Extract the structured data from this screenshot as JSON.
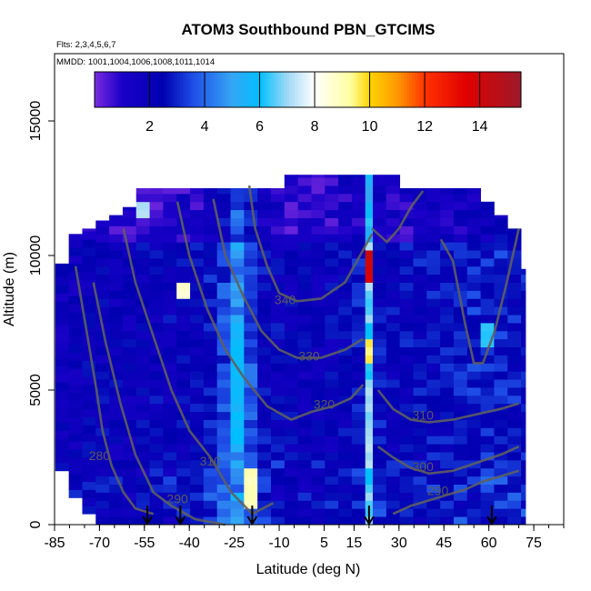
{
  "chart_data": {
    "type": "heatmap",
    "title": "ATOM3 Southbound PBN_GTCIMS",
    "flights_label": "Flts: 2,3,4,5,6,7",
    "dates_label": "MMDD: 1001,1004,1006,1008,1011,1014",
    "xlabel": "Latitude (deg N)",
    "ylabel": "Altitude (m)",
    "xlim": [
      -85,
      85
    ],
    "ylim": [
      0,
      17500
    ],
    "x_ticks": [
      -85,
      -70,
      -55,
      -40,
      -25,
      -10,
      5,
      15,
      30,
      45,
      60,
      75
    ],
    "x_tick_labels": [
      "-85",
      "-70",
      "-55",
      "-40",
      "-25",
      "-10",
      "5",
      "15",
      "30",
      "45",
      "60",
      "75"
    ],
    "y_ticks": [
      0,
      5000,
      10000,
      15000
    ],
    "y_tick_labels": [
      "0",
      "5000",
      "10000",
      "15000"
    ],
    "colorbar": {
      "range": [
        0,
        15.5
      ],
      "ticks": [
        2,
        4,
        6,
        8,
        10,
        12,
        14
      ],
      "tick_labels": [
        "2",
        "4",
        "6",
        "8",
        "10",
        "12",
        "14"
      ],
      "stops": [
        {
          "v": 0.0,
          "c": "#7a2be0"
        },
        {
          "v": 1.0,
          "c": "#1a00c8"
        },
        {
          "v": 2.5,
          "c": "#0000b0"
        },
        {
          "v": 3.6,
          "c": "#1f4fe8"
        },
        {
          "v": 5.0,
          "c": "#35a6f5"
        },
        {
          "v": 6.0,
          "c": "#00bfff"
        },
        {
          "v": 7.0,
          "c": "#9fd8f5"
        },
        {
          "v": 8.0,
          "c": "#ffffff"
        },
        {
          "v": 9.3,
          "c": "#ffffa0"
        },
        {
          "v": 10.0,
          "c": "#ffd400"
        },
        {
          "v": 11.0,
          "c": "#ff9900"
        },
        {
          "v": 12.0,
          "c": "#ff3300"
        },
        {
          "v": 13.5,
          "c": "#e00000"
        },
        {
          "v": 15.5,
          "c": "#9b1a2a"
        }
      ]
    },
    "flight_markers_lat": [
      -54,
      -43,
      -19,
      20,
      61
    ],
    "columns": [
      {
        "lat": -82.5,
        "w": 4.5,
        "bot": 2000,
        "top": 9700,
        "base": 1.8
      },
      {
        "lat": -78.0,
        "w": 4.5,
        "bot": 1000,
        "top": 10800,
        "base": 1.9
      },
      {
        "lat": -73.5,
        "w": 4.5,
        "bot": 400,
        "top": 11000,
        "base": 2.0
      },
      {
        "lat": -69.0,
        "w": 4.5,
        "bot": 0,
        "top": 11300,
        "base": 2.1
      },
      {
        "lat": -64.5,
        "w": 4.5,
        "bot": 0,
        "top": 11500,
        "base": 2.0
      },
      {
        "lat": -60.0,
        "w": 4.5,
        "bot": 0,
        "top": 11800,
        "base": 2.0
      },
      {
        "lat": -55.5,
        "w": 4.5,
        "bot": 0,
        "top": 12500,
        "base": 2.1
      },
      {
        "lat": -51.0,
        "w": 4.5,
        "bot": 0,
        "top": 12500,
        "base": 2.2
      },
      {
        "lat": -46.5,
        "w": 4.5,
        "bot": 0,
        "top": 12500,
        "base": 2.2
      },
      {
        "lat": -42.0,
        "w": 4.5,
        "bot": 0,
        "top": 12500,
        "base": 2.3
      },
      {
        "lat": -37.5,
        "w": 4.5,
        "bot": 0,
        "top": 12500,
        "base": 2.3
      },
      {
        "lat": -33.0,
        "w": 4.5,
        "bot": 0,
        "top": 12500,
        "base": 2.6
      },
      {
        "lat": -28.5,
        "w": 4.5,
        "bot": 0,
        "top": 12500,
        "base": 3.4
      },
      {
        "lat": -24.0,
        "w": 4.5,
        "bot": 0,
        "top": 12500,
        "base": 4.6
      },
      {
        "lat": -19.5,
        "w": 4.5,
        "bot": 0,
        "top": 12500,
        "base": 3.6
      },
      {
        "lat": -15.0,
        "w": 4.5,
        "bot": 0,
        "top": 12500,
        "base": 2.4
      },
      {
        "lat": -10.5,
        "w": 4.5,
        "bot": 0,
        "top": 12500,
        "base": 2.2
      },
      {
        "lat": -6.0,
        "w": 4.5,
        "bot": 0,
        "top": 13000,
        "base": 2.1
      },
      {
        "lat": -1.5,
        "w": 4.5,
        "bot": 0,
        "top": 13000,
        "base": 2.0
      },
      {
        "lat": 3.0,
        "w": 4.5,
        "bot": 0,
        "top": 13000,
        "base": 2.0
      },
      {
        "lat": 7.5,
        "w": 4.5,
        "bot": 0,
        "top": 13000,
        "base": 2.1
      },
      {
        "lat": 12.0,
        "w": 4.5,
        "bot": 0,
        "top": 13000,
        "base": 2.3
      },
      {
        "lat": 16.5,
        "w": 4.5,
        "bot": 0,
        "top": 13000,
        "base": 2.6
      },
      {
        "lat": 20.0,
        "w": 2.5,
        "bot": 0,
        "top": 13000,
        "base": 6.5
      },
      {
        "lat": 23.5,
        "w": 4.5,
        "bot": 0,
        "top": 13000,
        "base": 2.5
      },
      {
        "lat": 28.0,
        "w": 4.5,
        "bot": 0,
        "top": 13000,
        "base": 2.3
      },
      {
        "lat": 32.5,
        "w": 4.5,
        "bot": 0,
        "top": 12500,
        "base": 2.4
      },
      {
        "lat": 37.0,
        "w": 4.5,
        "bot": 0,
        "top": 12500,
        "base": 2.5
      },
      {
        "lat": 41.5,
        "w": 4.5,
        "bot": 0,
        "top": 12500,
        "base": 2.5
      },
      {
        "lat": 46.0,
        "w": 4.5,
        "bot": 0,
        "top": 12500,
        "base": 2.6
      },
      {
        "lat": 50.5,
        "w": 4.5,
        "bot": 0,
        "top": 12500,
        "base": 2.7
      },
      {
        "lat": 55.0,
        "w": 4.5,
        "bot": 0,
        "top": 12500,
        "base": 2.9
      },
      {
        "lat": 59.5,
        "w": 4.5,
        "bot": 0,
        "top": 12000,
        "base": 2.8
      },
      {
        "lat": 64.0,
        "w": 4.5,
        "bot": 0,
        "top": 11500,
        "base": 2.9
      },
      {
        "lat": 68.5,
        "w": 4.5,
        "bot": 0,
        "top": 11000,
        "base": 2.8
      },
      {
        "lat": 71.5,
        "w": 1.5,
        "bot": 0,
        "top": 9500,
        "base": 2.6
      }
    ],
    "hotspots": [
      {
        "lat": 20.0,
        "alt_lo": 9000,
        "alt_hi": 10200,
        "v": 14.0
      },
      {
        "lat": 20.0,
        "alt_lo": 6000,
        "alt_hi": 7000,
        "v": 9.5
      },
      {
        "lat": 20.0,
        "alt_lo": 2000,
        "alt_hi": 5500,
        "v": 7.0
      },
      {
        "lat": -19.5,
        "alt_lo": 600,
        "alt_hi": 2000,
        "v": 9.0
      },
      {
        "lat": -24.0,
        "alt_lo": 3000,
        "alt_hi": 7500,
        "v": 5.8
      },
      {
        "lat": -42.0,
        "alt_lo": 8500,
        "alt_hi": 9000,
        "v": 8.5
      },
      {
        "lat": -55.5,
        "alt_lo": 11500,
        "alt_hi": 12000,
        "v": 7.0
      },
      {
        "lat": 59.5,
        "alt_lo": 6500,
        "alt_hi": 7500,
        "v": 6.0
      }
    ],
    "contours": [
      {
        "label": "280",
        "label_lat": -70,
        "label_alt": 2400,
        "points": [
          [
            -78,
            9600
          ],
          [
            -74,
            7000
          ],
          [
            -71,
            5000
          ],
          [
            -69,
            3500
          ],
          [
            -66,
            2200
          ],
          [
            -62,
            1200
          ],
          [
            -58,
            600
          ],
          [
            -52,
            400
          ]
        ]
      },
      {
        "label": "290",
        "label_lat": -44,
        "label_alt": 800,
        "points": [
          [
            -72,
            9000
          ],
          [
            -68,
            6800
          ],
          [
            -63,
            4500
          ],
          [
            -58,
            2600
          ],
          [
            -52,
            1200
          ],
          [
            -46,
            700
          ],
          [
            -38,
            200
          ],
          [
            -28,
            0
          ]
        ]
      },
      {
        "label": "310",
        "label_lat": -33,
        "label_alt": 2200,
        "points": [
          [
            -62,
            11000
          ],
          [
            -58,
            9000
          ],
          [
            -52,
            7000
          ],
          [
            -46,
            5000
          ],
          [
            -40,
            3500
          ],
          [
            -33,
            2500
          ],
          [
            -26,
            1200
          ],
          [
            -19,
            400
          ],
          [
            -12,
            800
          ]
        ]
      },
      {
        "label": "320",
        "label_lat": 5,
        "label_alt": 4300,
        "points": [
          [
            -44,
            12000
          ],
          [
            -40,
            10000
          ],
          [
            -34,
            8000
          ],
          [
            -28,
            6500
          ],
          [
            -22,
            5500
          ],
          [
            -14,
            4400
          ],
          [
            -6,
            3900
          ],
          [
            1,
            4200
          ],
          [
            8,
            4400
          ],
          [
            14,
            4700
          ],
          [
            18,
            5200
          ]
        ]
      },
      {
        "label": "330",
        "label_lat": 0,
        "label_alt": 6100,
        "points": [
          [
            -32,
            12100
          ],
          [
            -28,
            10000
          ],
          [
            -22,
            8500
          ],
          [
            -16,
            7200
          ],
          [
            -10,
            6500
          ],
          [
            -4,
            6200
          ],
          [
            4,
            6200
          ],
          [
            12,
            6500
          ],
          [
            18,
            6900
          ]
        ]
      },
      {
        "label": "340",
        "label_lat": -8,
        "label_alt": 8200,
        "points": [
          [
            -20,
            12600
          ],
          [
            -18,
            11000
          ],
          [
            -14,
            9600
          ],
          [
            -10,
            8600
          ],
          [
            -4,
            8300
          ],
          [
            4,
            8400
          ],
          [
            12,
            9000
          ],
          [
            17,
            10000
          ],
          [
            21,
            10800
          ]
        ]
      },
      {
        "label": "310",
        "label_lat": 38,
        "label_alt": 3900,
        "points": [
          [
            23,
            5000
          ],
          [
            28,
            4300
          ],
          [
            34,
            3900
          ],
          [
            40,
            3800
          ],
          [
            48,
            3900
          ],
          [
            56,
            4100
          ],
          [
            64,
            4300
          ],
          [
            70,
            4500
          ]
        ]
      },
      {
        "label": "300",
        "label_lat": 38,
        "label_alt": 2000,
        "points": [
          [
            23,
            2900
          ],
          [
            28,
            2500
          ],
          [
            34,
            2100
          ],
          [
            40,
            1900
          ],
          [
            48,
            2000
          ],
          [
            56,
            2300
          ],
          [
            64,
            2600
          ],
          [
            70,
            2900
          ]
        ]
      },
      {
        "label": "290",
        "label_lat": 43,
        "label_alt": 1100,
        "points": [
          [
            28,
            400
          ],
          [
            34,
            700
          ],
          [
            40,
            900
          ],
          [
            46,
            1100
          ],
          [
            52,
            1300
          ],
          [
            58,
            1600
          ],
          [
            64,
            1800
          ],
          [
            70,
            2000
          ]
        ]
      },
      {
        "label": "",
        "label_lat": 0,
        "label_alt": 0,
        "points": [
          [
            21,
            11000
          ],
          [
            26,
            10500
          ],
          [
            30,
            11000
          ],
          [
            34,
            11800
          ],
          [
            38,
            12400
          ]
        ]
      },
      {
        "label": "",
        "label_lat": 0,
        "label_alt": 0,
        "points": [
          [
            44,
            10600
          ],
          [
            48,
            9800
          ],
          [
            52,
            7500
          ],
          [
            55,
            6000
          ],
          [
            58,
            6000
          ],
          [
            62,
            7200
          ],
          [
            66,
            9000
          ],
          [
            70,
            11000
          ]
        ]
      }
    ]
  }
}
